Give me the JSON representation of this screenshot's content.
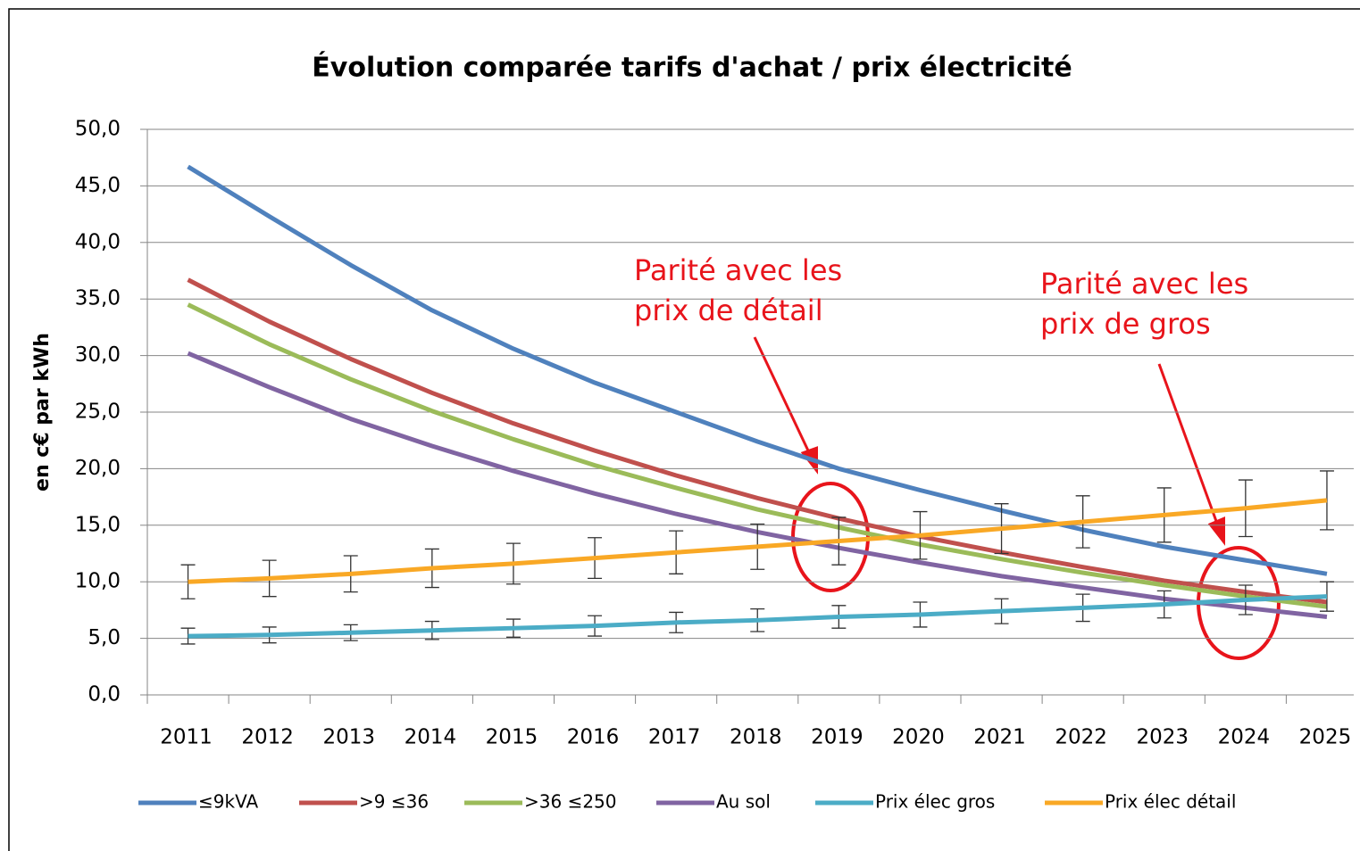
{
  "chart_data": {
    "type": "line",
    "title": "Évolution comparée tarifs d'achat / prix électricité",
    "y_label": "en c€ par kWh",
    "categories": [
      "2011",
      "2012",
      "2013",
      "2014",
      "2015",
      "2016",
      "2017",
      "2018",
      "2019",
      "2020",
      "2021",
      "2022",
      "2023",
      "2024",
      "2025"
    ],
    "ylim": [
      0,
      50
    ],
    "yticks": [
      {
        "value": 0,
        "label": "0,0"
      },
      {
        "value": 5,
        "label": "5,0"
      },
      {
        "value": 10,
        "label": "10,0"
      },
      {
        "value": 15,
        "label": "15,0"
      },
      {
        "value": 20,
        "label": "20,0"
      },
      {
        "value": 25,
        "label": "25,0"
      },
      {
        "value": 30,
        "label": "30,0"
      },
      {
        "value": 35,
        "label": "35,0"
      },
      {
        "value": 40,
        "label": "40,0"
      },
      {
        "value": 45,
        "label": "45,0"
      },
      {
        "value": 50,
        "label": "50,0"
      }
    ],
    "grid": true,
    "legend": "bottom",
    "series": [
      {
        "name": "≤9kVA",
        "color": "#4f81bd",
        "values": [
          46.7,
          42.3,
          38.0,
          34.0,
          30.6,
          27.6,
          25.0,
          22.4,
          20.0,
          18.1,
          16.3,
          14.6,
          13.1,
          11.9,
          10.7
        ]
      },
      {
        "name": ">9 ≤36",
        "color": "#c0504d",
        "values": [
          36.7,
          33.0,
          29.7,
          26.7,
          24.0,
          21.6,
          19.4,
          17.4,
          15.6,
          14.0,
          12.6,
          11.3,
          10.1,
          9.1,
          8.2
        ]
      },
      {
        "name": ">36 ≤250",
        "color": "#9bbb59",
        "values": [
          34.5,
          31.0,
          27.9,
          25.1,
          22.6,
          20.3,
          18.3,
          16.4,
          14.8,
          13.3,
          12.0,
          10.8,
          9.7,
          8.7,
          7.8
        ]
      },
      {
        "name": "Au sol",
        "color": "#8064a2",
        "values": [
          30.2,
          27.2,
          24.4,
          22.0,
          19.8,
          17.8,
          16.0,
          14.4,
          13.0,
          11.7,
          10.5,
          9.5,
          8.5,
          7.7,
          6.9
        ]
      },
      {
        "name": "Prix élec gros",
        "color": "#4bacc6",
        "values": [
          5.2,
          5.3,
          5.5,
          5.7,
          5.9,
          6.1,
          6.4,
          6.6,
          6.9,
          7.1,
          7.4,
          7.7,
          8.0,
          8.4,
          8.7
        ],
        "errors": [
          0.7,
          0.7,
          0.7,
          0.8,
          0.8,
          0.9,
          0.9,
          1.0,
          1.0,
          1.1,
          1.1,
          1.2,
          1.2,
          1.3,
          1.3
        ]
      },
      {
        "name": "Prix élec détail",
        "color": "#f9a825",
        "values": [
          10.0,
          10.3,
          10.7,
          11.2,
          11.6,
          12.1,
          12.6,
          13.1,
          13.6,
          14.1,
          14.7,
          15.3,
          15.9,
          16.5,
          17.2
        ],
        "errors": [
          1.5,
          1.6,
          1.6,
          1.7,
          1.8,
          1.8,
          1.9,
          2.0,
          2.1,
          2.1,
          2.2,
          2.3,
          2.4,
          2.5,
          2.6
        ]
      }
    ],
    "annotations": [
      {
        "lines": [
          "Parité avec les",
          "prix de détail"
        ],
        "color": "#e8141b"
      },
      {
        "lines": [
          "Parité avec les",
          "prix de gros"
        ],
        "color": "#e8141b"
      }
    ]
  }
}
